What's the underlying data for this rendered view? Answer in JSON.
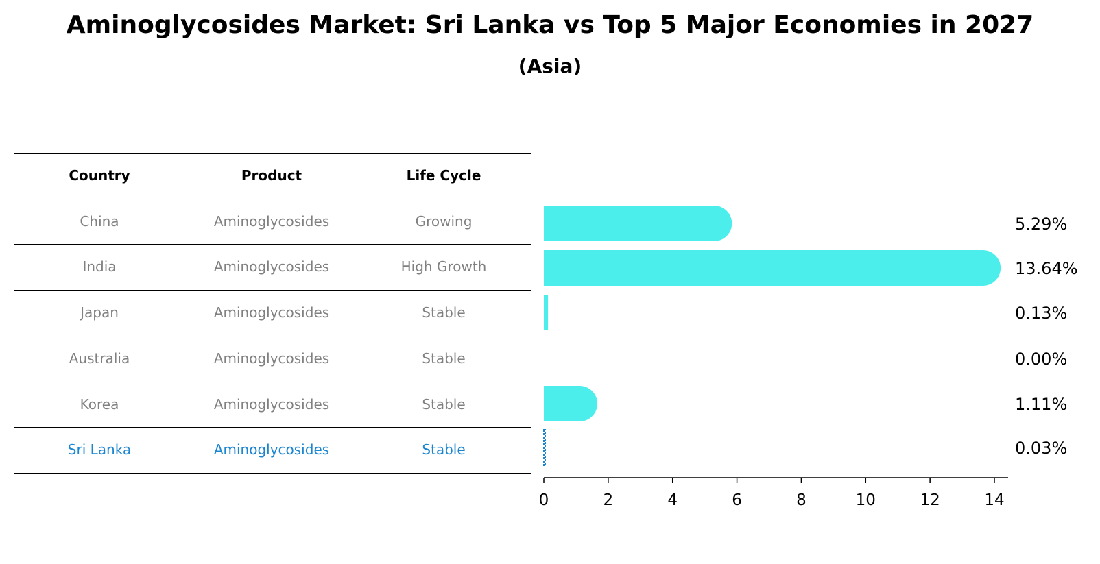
{
  "title": "Aminoglycosides Market: Sri Lanka vs Top 5 Major Economies in 2027",
  "subtitle": "(Asia)",
  "table": {
    "headers": [
      "Country",
      "Product",
      "Life Cycle"
    ],
    "rows": [
      {
        "country": "China",
        "product": "Aminoglycosides",
        "life_cycle": "Growing"
      },
      {
        "country": "India",
        "product": "Aminoglycosides",
        "life_cycle": "High Growth"
      },
      {
        "country": "Japan",
        "product": "Aminoglycosides",
        "life_cycle": "Stable"
      },
      {
        "country": "Australia",
        "product": "Aminoglycosides",
        "life_cycle": "Stable"
      },
      {
        "country": "Korea",
        "product": "Aminoglycosides",
        "life_cycle": "Stable"
      },
      {
        "country": "Sri Lanka",
        "product": "Aminoglycosides",
        "life_cycle": "Stable"
      }
    ],
    "highlight_row": 5
  },
  "chart_data": {
    "type": "bar",
    "orientation": "horizontal",
    "categories": [
      "China",
      "India",
      "Japan",
      "Australia",
      "Korea",
      "Sri Lanka"
    ],
    "values": [
      5.29,
      13.64,
      0.13,
      0.0,
      1.11,
      0.03
    ],
    "value_labels": [
      "5.29%",
      "13.64%",
      "0.13%",
      "0.00%",
      "1.11%",
      "0.03%"
    ],
    "xlim": [
      0,
      14.3
    ],
    "xticks": [
      0,
      2,
      4,
      6,
      8,
      10,
      12,
      14
    ],
    "grid": false,
    "bar_color": "#4beeea",
    "highlight_color": "#1a85d0",
    "highlight_index": 5
  }
}
